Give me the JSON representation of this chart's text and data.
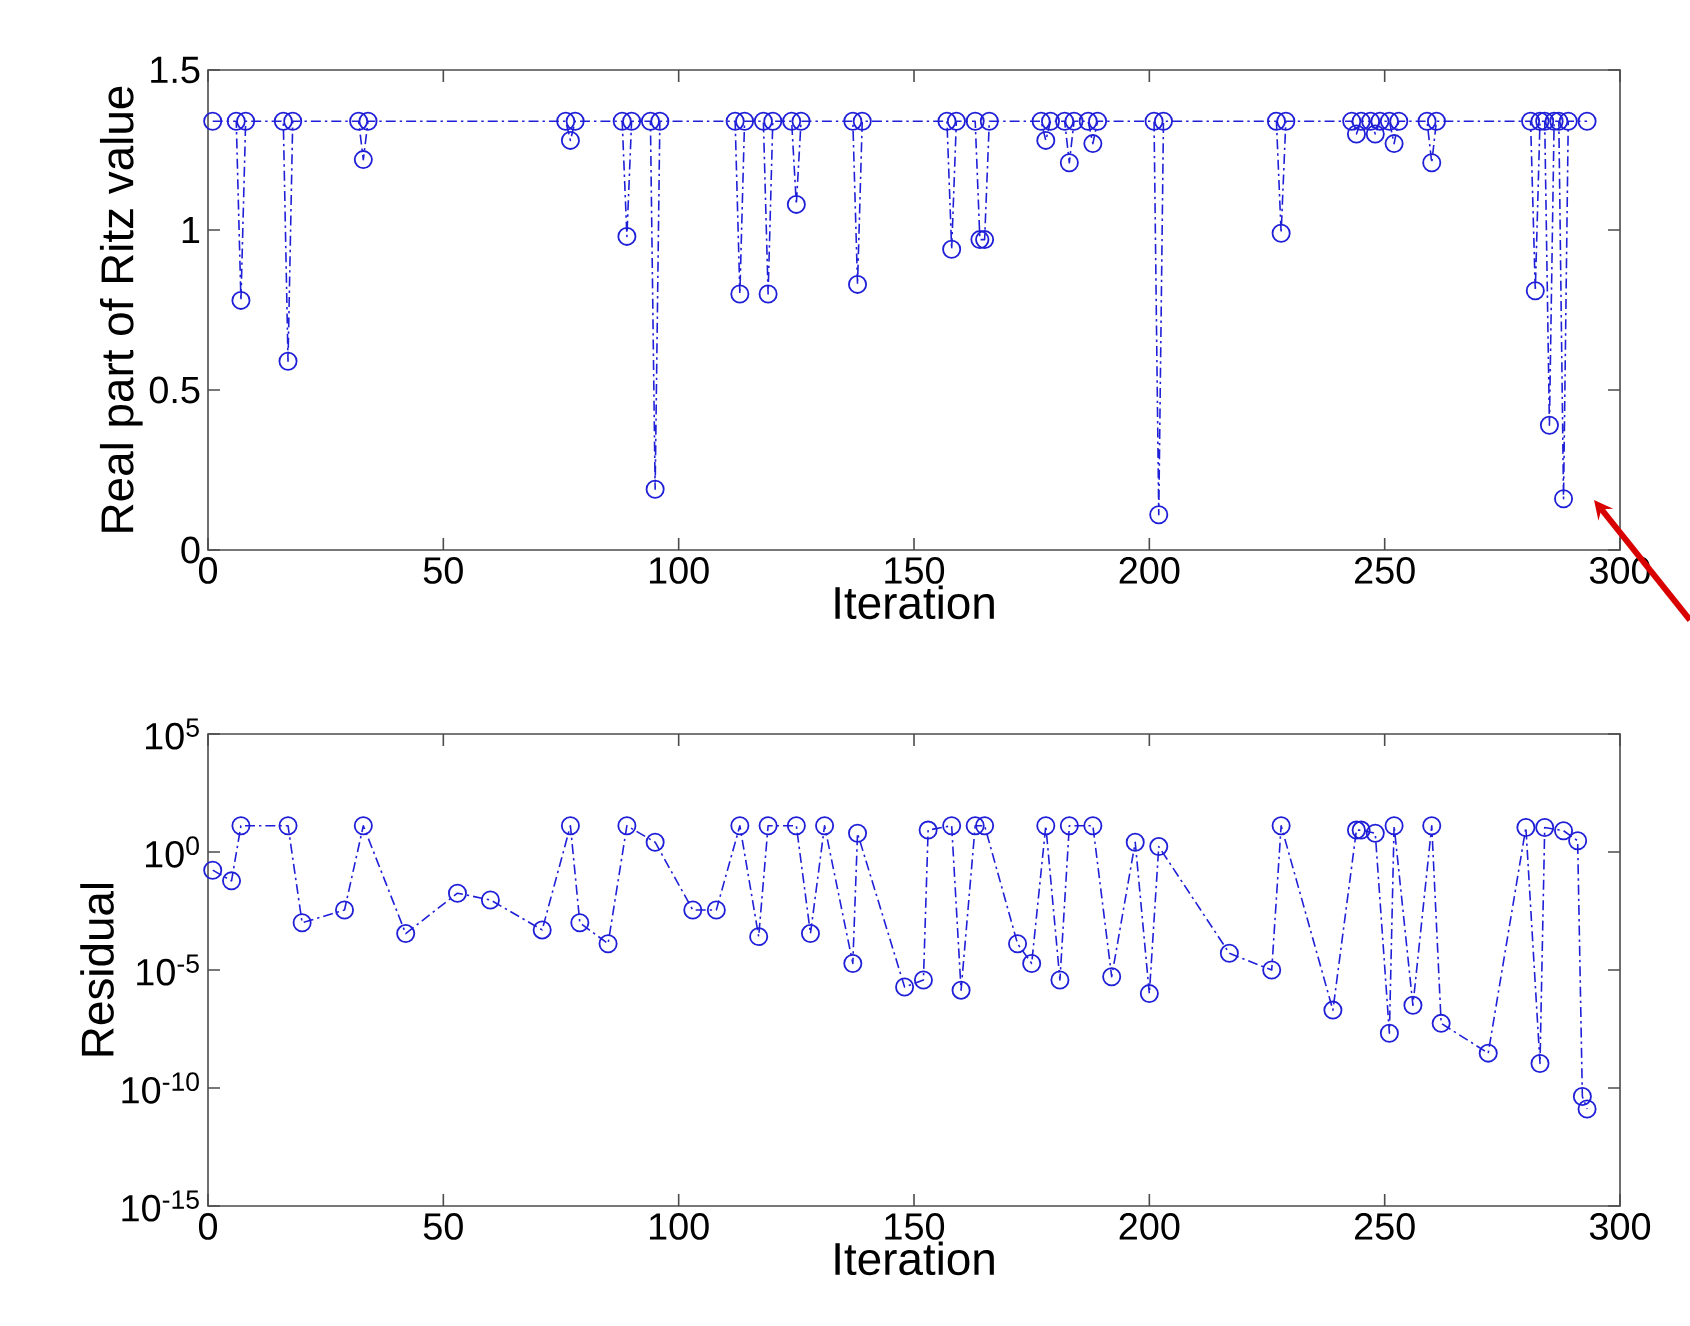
{
  "chart_data": [
    {
      "type": "line",
      "xlabel": "Iteration",
      "ylabel": "Real part of Ritz value",
      "xlim": [
        0,
        300
      ],
      "ylim": [
        0,
        1.5
      ],
      "xticks": [
        0,
        50,
        100,
        150,
        200,
        250,
        300
      ],
      "yticks": [
        0,
        0.5,
        1,
        1.5
      ],
      "marker": "circle",
      "line_style": "dashdot",
      "x": [
        1,
        6,
        7,
        8,
        16,
        17,
        18,
        32,
        33,
        34,
        76,
        77,
        78,
        88,
        89,
        90,
        94,
        95,
        96,
        112,
        113,
        114,
        118,
        119,
        120,
        124,
        125,
        126,
        137,
        138,
        139,
        157,
        158,
        159,
        163,
        164,
        165,
        166,
        177,
        178,
        179,
        182,
        183,
        184,
        187,
        188,
        189,
        201,
        202,
        203,
        227,
        228,
        229,
        243,
        244,
        245,
        247,
        248,
        249,
        251,
        252,
        253,
        259,
        260,
        261,
        281,
        282,
        283,
        284,
        285,
        286,
        287,
        288,
        289,
        293
      ],
      "series": [
        {
          "color": "#1f1fd8",
          "values": [
            1.34,
            1.34,
            0.78,
            1.34,
            1.34,
            0.59,
            1.34,
            1.34,
            1.22,
            1.34,
            1.34,
            1.28,
            1.34,
            1.34,
            0.98,
            1.34,
            1.34,
            0.19,
            1.34,
            1.34,
            0.8,
            1.34,
            1.34,
            0.8,
            1.34,
            1.34,
            1.08,
            1.34,
            1.34,
            0.83,
            1.34,
            1.34,
            0.94,
            1.34,
            1.34,
            0.97,
            0.97,
            1.34,
            1.34,
            1.28,
            1.34,
            1.34,
            1.21,
            1.34,
            1.34,
            1.27,
            1.34,
            1.34,
            0.11,
            1.34,
            1.34,
            0.99,
            1.34,
            1.34,
            1.3,
            1.34,
            1.34,
            1.3,
            1.34,
            1.34,
            1.27,
            1.34,
            1.34,
            1.21,
            1.34,
            1.34,
            0.81,
            1.34,
            1.34,
            0.39,
            1.34,
            1.34,
            0.16,
            1.34,
            1.34
          ]
        }
      ]
    },
    {
      "type": "line",
      "xlabel": "Iteration",
      "ylabel": "Residual",
      "xlim": [
        0,
        300
      ],
      "ylim": [
        1e-15,
        100000.0
      ],
      "log": "y",
      "xticks": [
        0,
        50,
        100,
        150,
        200,
        250,
        300
      ],
      "yticks": [
        {
          "value": 1e-15,
          "label": "10$^{-15}$"
        },
        {
          "value": 1e-10,
          "label": "10$^{-10}$"
        },
        {
          "value": 1e-05,
          "label": "10$^{-5}$"
        },
        {
          "value": 1,
          "label": "10$^{0}$"
        },
        {
          "value": 100000.0,
          "label": "10$^{5}$"
        }
      ],
      "marker": "circle",
      "line_style": "dashdot",
      "x": [
        1,
        5,
        7,
        17,
        20,
        29,
        33,
        42,
        53,
        60,
        71,
        77,
        79,
        85,
        89,
        95,
        103,
        108,
        113,
        117,
        119,
        125,
        128,
        131,
        137,
        138,
        148,
        152,
        153,
        158,
        160,
        163,
        165,
        172,
        175,
        178,
        181,
        183,
        188,
        192,
        197,
        200,
        202,
        217,
        226,
        228,
        239,
        244,
        245,
        248,
        251,
        252,
        256,
        260,
        262,
        272,
        280,
        283,
        284,
        288,
        291,
        292,
        293
      ],
      "series": [
        {
          "color": "#1f1fd8",
          "values": [
            0.17,
            0.06,
            13,
            13,
            0.001,
            0.0035,
            13,
            0.00035,
            0.018,
            0.0093,
            0.0005,
            13,
            0.001,
            0.00013,
            13,
            2.6,
            0.0035,
            0.0035,
            13,
            0.00026,
            13,
            13,
            0.00035,
            13,
            1.9e-05,
            6.2,
            1.9e-06,
            3.8e-06,
            8.5,
            13,
            1.4e-06,
            13,
            13,
            0.00013,
            1.9e-05,
            13,
            3.8e-06,
            13,
            13,
            5.2e-06,
            2.6,
            1e-06,
            1.7,
            5.1e-05,
            1e-05,
            13,
            2e-07,
            8.5,
            8.5,
            6.2,
            2.1e-08,
            13,
            3.2e-07,
            13,
            5.5e-08,
            3e-09,
            11,
            1.1e-09,
            11,
            8,
            3,
            4.4e-11,
            1.3e-11
          ]
        }
      ]
    }
  ]
}
